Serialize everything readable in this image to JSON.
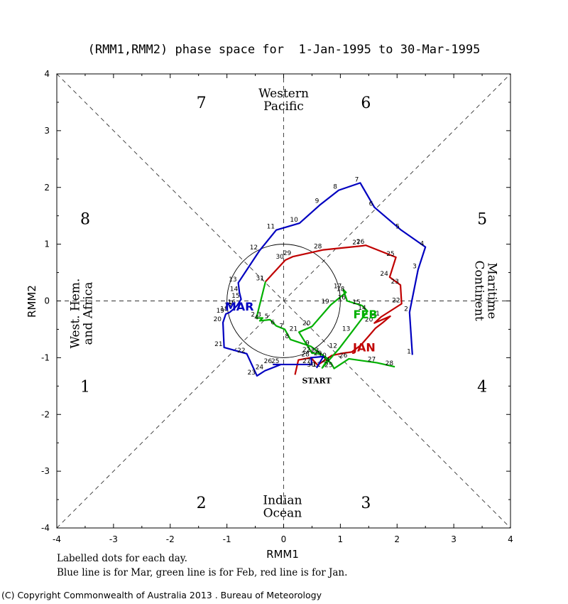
{
  "chart_data": {
    "type": "line",
    "title": "(RMM1,RMM2) phase space for  1-Jan-1995 to 30-Mar-1995",
    "xlabel": "RMM1",
    "ylabel": "RMM2",
    "xlim": [
      -4,
      4
    ],
    "ylim": [
      -4,
      4
    ],
    "xticks": [
      "-4",
      "-3",
      "-2",
      "-1",
      "0",
      "1",
      "2",
      "3",
      "4"
    ],
    "yticks": [
      "-4",
      "-3",
      "-2",
      "-1",
      "0",
      "1",
      "2",
      "3",
      "4"
    ],
    "unit_circle_radius": 1,
    "phase_labels": [
      {
        "text": "1",
        "x": -3.5,
        "y": -1.5
      },
      {
        "text": "2",
        "x": -1.45,
        "y": -3.55
      },
      {
        "text": "3",
        "x": 1.45,
        "y": -3.55
      },
      {
        "text": "4",
        "x": 3.5,
        "y": -1.5
      },
      {
        "text": "5",
        "x": 3.5,
        "y": 1.45
      },
      {
        "text": "6",
        "x": 1.45,
        "y": 3.5
      },
      {
        "text": "7",
        "x": -1.45,
        "y": 3.5
      },
      {
        "text": "8",
        "x": -3.5,
        "y": 1.45
      }
    ],
    "region_labels": [
      {
        "lines": [
          "Western",
          "Pacific"
        ],
        "x": 0,
        "y": 3.55,
        "rotate": 0
      },
      {
        "lines": [
          "Indian",
          "Ocean"
        ],
        "x": -0.02,
        "y": -3.62,
        "rotate": 0
      },
      {
        "lines": [
          "West. Hem.",
          "and Africa"
        ],
        "x": -3.57,
        "y": -0.22,
        "rotate": -90
      },
      {
        "lines": [
          "Maritime",
          "Continent"
        ],
        "x": 3.57,
        "y": 0.18,
        "rotate": 90
      }
    ],
    "series": [
      {
        "name": "Jan",
        "color": "#c00000",
        "label": "JAN",
        "label_at": [
          1.42,
          -0.8
        ],
        "points": [
          {
            "d": "START",
            "x": 0.2,
            "y": -1.3
          },
          {
            "d": "",
            "x": 0.26,
            "y": -1.04
          },
          {
            "d": "",
            "x": 0.48,
            "y": -1.0
          },
          {
            "d": "",
            "x": 0.6,
            "y": -1.13
          },
          {
            "d": "",
            "x": 0.85,
            "y": -0.96
          },
          {
            "d": "",
            "x": 1.05,
            "y": -0.92
          },
          {
            "d": "",
            "x": 1.2,
            "y": -0.9
          },
          {
            "d": "",
            "x": 1.36,
            "y": -0.78
          },
          {
            "d": "",
            "x": 1.5,
            "y": -0.62
          },
          {
            "d": "",
            "x": 1.62,
            "y": -0.48
          },
          {
            "d": "",
            "x": 1.75,
            "y": -0.38
          },
          {
            "d": "",
            "x": 1.88,
            "y": -0.27
          },
          {
            "d": "20",
            "x": 1.6,
            "y": -0.39
          },
          {
            "d": "21",
            "x": 1.72,
            "y": -0.28
          },
          {
            "d": "22",
            "x": 2.08,
            "y": -0.05
          },
          {
            "d": "23",
            "x": 2.06,
            "y": 0.28
          },
          {
            "d": "24",
            "x": 1.87,
            "y": 0.42
          },
          {
            "d": "25",
            "x": 1.98,
            "y": 0.77
          },
          {
            "d": "26",
            "x": 1.45,
            "y": 0.98
          },
          {
            "d": "27",
            "x": 1.38,
            "y": 0.97
          },
          {
            "d": "28",
            "x": 0.7,
            "y": 0.9
          },
          {
            "d": "29",
            "x": 0.16,
            "y": 0.78
          },
          {
            "d": "30",
            "x": 0.03,
            "y": 0.72
          },
          {
            "d": "31",
            "x": -0.32,
            "y": 0.34
          }
        ]
      },
      {
        "name": "Feb",
        "color": "#00b000",
        "label": "FEB",
        "label_at": [
          1.44,
          -0.22
        ],
        "points": [
          {
            "d": "1",
            "x": -0.32,
            "y": 0.34
          },
          {
            "d": "2",
            "x": -0.48,
            "y": -0.3
          },
          {
            "d": "3",
            "x": -0.37,
            "y": -0.3
          },
          {
            "d": "4",
            "x": -0.42,
            "y": -0.35
          },
          {
            "d": "5",
            "x": -0.24,
            "y": -0.33
          },
          {
            "d": "6",
            "x": -0.13,
            "y": -0.44
          },
          {
            "d": "7",
            "x": 0.02,
            "y": -0.5
          },
          {
            "d": "8",
            "x": 0.12,
            "y": -0.68
          },
          {
            "d": "9",
            "x": 0.48,
            "y": -0.8
          },
          {
            "d": "10",
            "x": 0.78,
            "y": -1.02
          },
          {
            "d": "11",
            "x": 0.68,
            "y": -1.18
          },
          {
            "d": "12",
            "x": 0.97,
            "y": -0.85
          },
          {
            "d": "13",
            "x": 1.2,
            "y": -0.55
          },
          {
            "d": "14",
            "x": 1.48,
            "y": -0.18
          },
          {
            "d": "15",
            "x": 1.38,
            "y": -0.08
          },
          {
            "d": "16",
            "x": 1.12,
            "y": 0.0
          },
          {
            "d": "17",
            "x": 1.05,
            "y": 0.2
          },
          {
            "d": "18",
            "x": 1.1,
            "y": 0.15
          },
          {
            "d": "19",
            "x": 0.83,
            "y": -0.07
          },
          {
            "d": "20",
            "x": 0.5,
            "y": -0.45
          },
          {
            "d": "21",
            "x": 0.27,
            "y": -0.55
          },
          {
            "d": "22",
            "x": 0.5,
            "y": -0.92
          },
          {
            "d": "23",
            "x": 0.65,
            "y": -0.93
          },
          {
            "d": "24",
            "x": 0.84,
            "y": -1.1
          },
          {
            "d": "25",
            "x": 0.89,
            "y": -1.19
          },
          {
            "d": "26",
            "x": 1.15,
            "y": -1.02
          },
          {
            "d": "27",
            "x": 1.65,
            "y": -1.09
          },
          {
            "d": "28",
            "x": 1.96,
            "y": -1.16
          }
        ]
      },
      {
        "name": "Mar",
        "color": "#0000c0",
        "label": "MAR",
        "label_at": [
          -0.78,
          -0.08
        ],
        "points": [
          {
            "d": "1",
            "x": 2.27,
            "y": -0.95
          },
          {
            "d": "2",
            "x": 2.22,
            "y": -0.2
          },
          {
            "d": "3",
            "x": 2.37,
            "y": 0.55
          },
          {
            "d": "4",
            "x": 2.5,
            "y": 0.95
          },
          {
            "d": "5",
            "x": 2.07,
            "y": 1.25
          },
          {
            "d": "6",
            "x": 1.6,
            "y": 1.65
          },
          {
            "d": "7",
            "x": 1.35,
            "y": 2.08
          },
          {
            "d": "8",
            "x": 0.97,
            "y": 1.95
          },
          {
            "d": "9",
            "x": 0.65,
            "y": 1.7
          },
          {
            "d": "10",
            "x": 0.28,
            "y": 1.37
          },
          {
            "d": "11",
            "x": -0.13,
            "y": 1.25
          },
          {
            "d": "12",
            "x": -0.43,
            "y": 0.88
          },
          {
            "d": "13",
            "x": -0.8,
            "y": 0.32
          },
          {
            "d": "14",
            "x": -0.78,
            "y": 0.15
          },
          {
            "d": "15",
            "x": -0.75,
            "y": 0.03
          },
          {
            "d": "16",
            "x": -0.82,
            "y": -0.08
          },
          {
            "d": "17",
            "x": -0.88,
            "y": -0.14
          },
          {
            "d": "18",
            "x": -0.95,
            "y": -0.2
          },
          {
            "d": "19",
            "x": -1.02,
            "y": -0.23
          },
          {
            "d": "20",
            "x": -1.07,
            "y": -0.38
          },
          {
            "d": "21",
            "x": -1.05,
            "y": -0.82
          },
          {
            "d": "22",
            "x": -0.65,
            "y": -0.93
          },
          {
            "d": "23",
            "x": -0.47,
            "y": -1.32
          },
          {
            "d": "24",
            "x": -0.33,
            "y": -1.23
          },
          {
            "d": "25",
            "x": -0.05,
            "y": -1.12
          },
          {
            "d": "26",
            "x": -0.18,
            "y": -1.12
          },
          {
            "d": "27",
            "x": 0.5,
            "y": -1.12
          },
          {
            "d": "28",
            "x": 0.48,
            "y": -1.0
          },
          {
            "d": "29",
            "x": 0.7,
            "y": -0.98
          },
          {
            "d": "30",
            "x": 0.58,
            "y": -1.18
          }
        ]
      }
    ]
  },
  "footer": {
    "line1": "Labelled dots for each day.",
    "line2": "Blue line is for Mar, green line is for Feb, red line is for Jan."
  },
  "copyright": "(C) Copyright Commonwealth of Australia 2013 . Bureau of Meteorology"
}
